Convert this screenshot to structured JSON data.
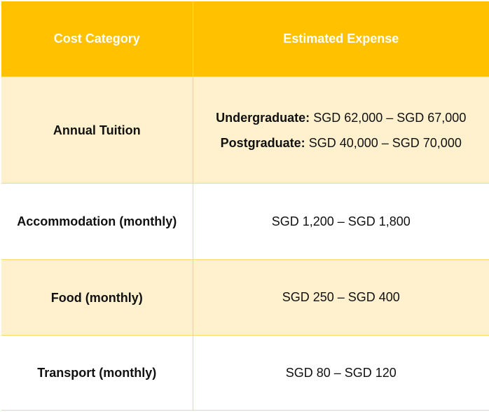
{
  "table": {
    "headers": [
      "Cost Category",
      "Estimated Expense"
    ],
    "rows": [
      {
        "category": "Annual Tuition",
        "expense_lines": [
          {
            "label": "Undergraduate:",
            "value": "SGD 62,000 – SGD 67,000"
          },
          {
            "label": "Postgraduate:",
            "value": "SGD 40,000 – SGD 70,000"
          }
        ]
      },
      {
        "category": "Accommodation (monthly)",
        "expense": "SGD 1,200 – SGD 1,800"
      },
      {
        "category": "Food (monthly)",
        "expense": "SGD 250 – SGD 400"
      },
      {
        "category": "Transport (monthly)",
        "expense": "SGD 80 – SGD 120"
      }
    ]
  },
  "colors": {
    "header_bg": "#ffc100",
    "header_text": "#ffffff",
    "alt_row_bg": "#fff1cd",
    "border": "#f9d96c",
    "text": "#111111"
  }
}
